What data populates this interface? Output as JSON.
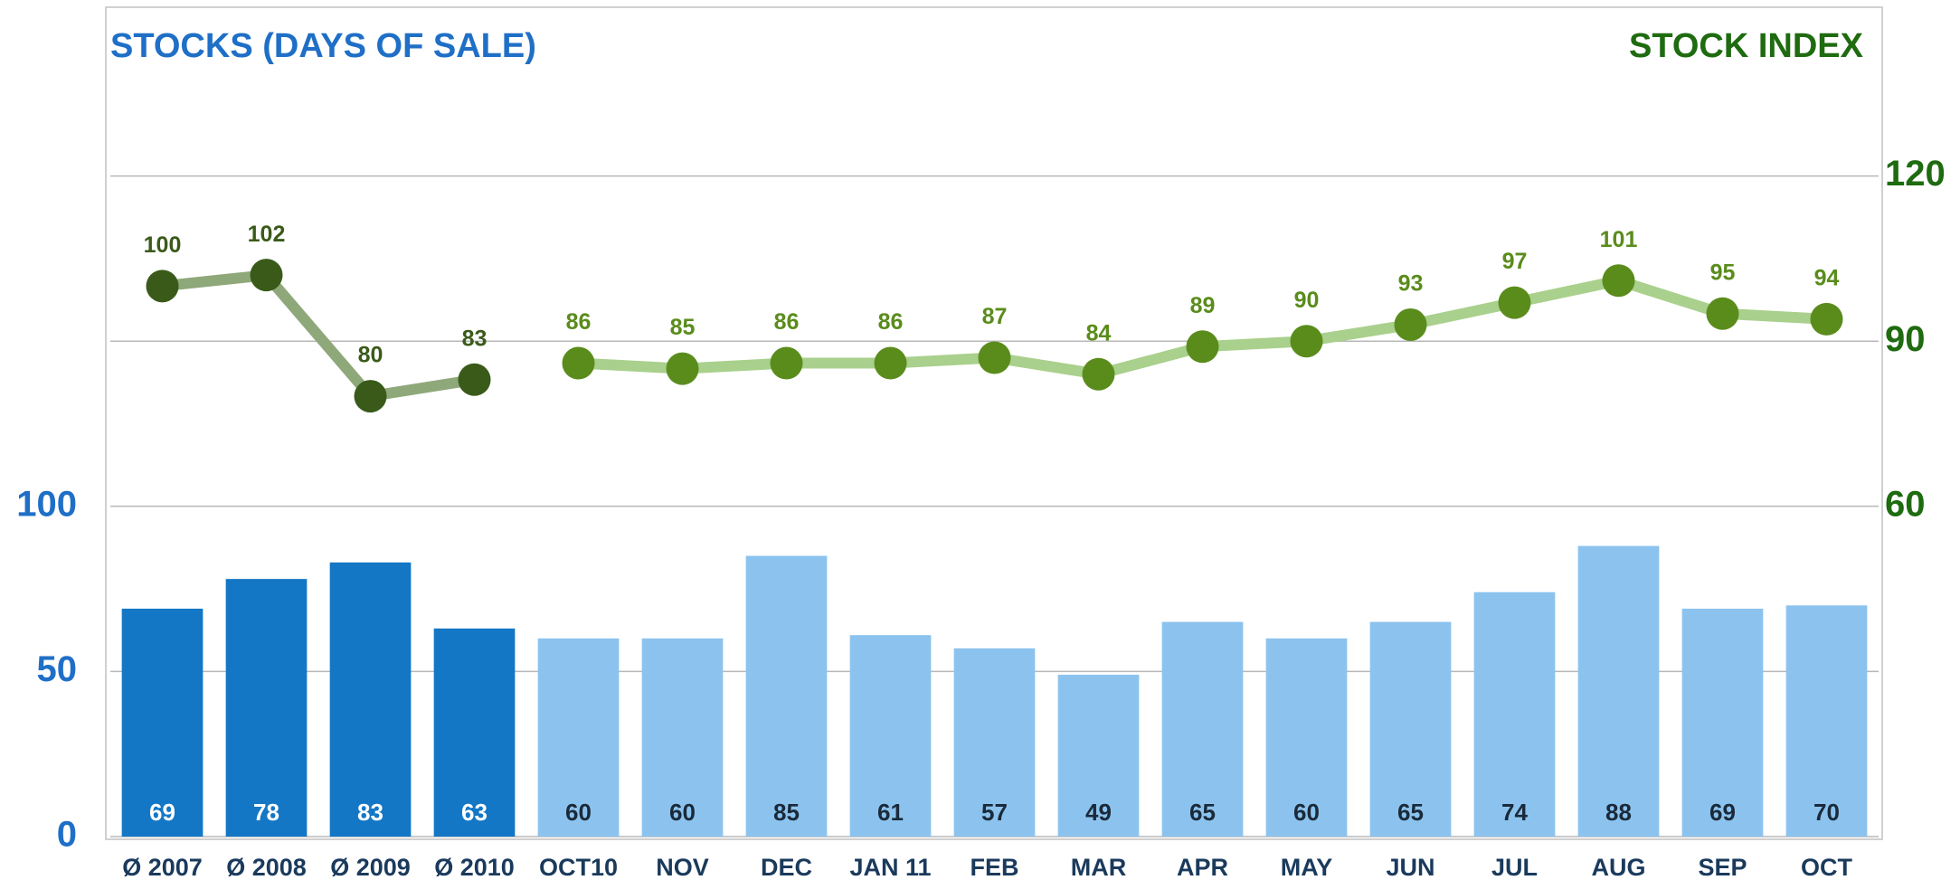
{
  "chart_data": {
    "type": "bar_line",
    "title": "STOCKS (DAYS OF SALE)",
    "y2_title": "STOCK INDEX",
    "categories": [
      "Ø 2007",
      "Ø 2008",
      "Ø 2009",
      "Ø 2010",
      "OCT10",
      "NOV",
      "DEC",
      "JAN 11",
      "FEB",
      "MAR",
      "APR",
      "MAY",
      "JUN",
      "JUL",
      "AUG",
      "SEP",
      "OCT"
    ],
    "series": [
      {
        "type": "bar",
        "values": [
          69,
          78,
          83,
          63,
          60,
          60,
          85,
          61,
          57,
          49,
          65,
          60,
          65,
          74,
          88,
          69,
          70
        ],
        "colors": [
          "#1477c6",
          "#1477c6",
          "#1477c6",
          "#1477c6",
          "#8cc3ee",
          "#8cc3ee",
          "#8cc3ee",
          "#8cc3ee",
          "#8cc3ee",
          "#8cc3ee",
          "#8cc3ee",
          "#8cc3ee",
          "#8cc3ee",
          "#8cc3ee",
          "#8cc3ee",
          "#8cc3ee",
          "#8cc3ee"
        ]
      },
      {
        "type": "line",
        "axis": "y2",
        "color": "#8fa87a",
        "marker_color": "#3a5a1a",
        "values": [
          100,
          102,
          80,
          83,
          null,
          null,
          null,
          null,
          null,
          null,
          null,
          null,
          null,
          null,
          null,
          null,
          null
        ]
      },
      {
        "type": "line",
        "axis": "y2",
        "color": "#a9d08c",
        "marker_color": "#5a8c1c",
        "values": [
          null,
          null,
          null,
          null,
          86,
          85,
          86,
          86,
          87,
          84,
          89,
          90,
          93,
          97,
          101,
          95,
          94
        ]
      }
    ],
    "ylim": [
      0,
      250
    ],
    "yticks": [
      0,
      50,
      100
    ],
    "y2lim": [
      0,
      150
    ],
    "y2ticks": [
      60,
      90,
      120
    ],
    "grid": true
  }
}
